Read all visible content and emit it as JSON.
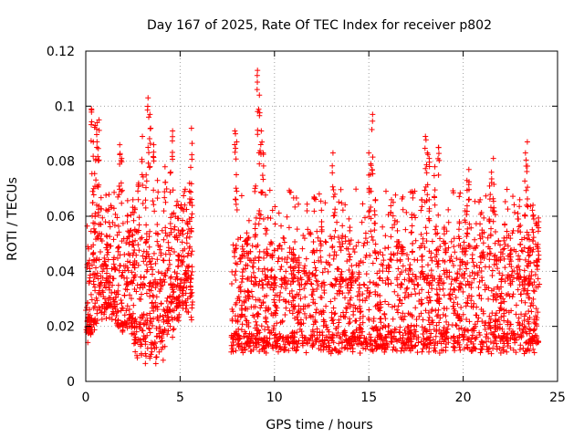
{
  "chart_data": {
    "type": "scatter",
    "title": "Day 167 of 2025, Rate Of TEC Index for receiver p802",
    "xlabel": "GPS time / hours",
    "ylabel": "ROTI / TECUs",
    "xlim": [
      0,
      25
    ],
    "ylim": [
      0,
      0.12
    ],
    "xticks": [
      0,
      5,
      10,
      15,
      20,
      25
    ],
    "xtick_labels": [
      "0",
      "5",
      "10",
      "15",
      "20",
      "25"
    ],
    "yticks": [
      0,
      0.02,
      0.04,
      0.06,
      0.08,
      0.1,
      0.12
    ],
    "ytick_labels": [
      "0",
      "0.02",
      "0.04",
      "0.06",
      "0.08",
      "0.1",
      "0.12"
    ],
    "grid": true,
    "marker": "+",
    "color": "#ff0000",
    "data_gap_hours": [
      5.7,
      7.7
    ],
    "series": [
      {
        "points": [
          [
            0.3,
            0.099
          ],
          [
            0.5,
            0.093
          ],
          [
            0.6,
            0.094
          ],
          [
            0.7,
            0.095
          ],
          [
            0.4,
            0.087
          ],
          [
            0.5,
            0.061
          ],
          [
            0.2,
            0.044
          ],
          [
            0.8,
            0.057
          ],
          [
            1.1,
            0.053
          ],
          [
            1.5,
            0.045
          ],
          [
            1.7,
            0.067
          ],
          [
            1.8,
            0.086
          ],
          [
            1.9,
            0.081
          ],
          [
            2.2,
            0.058
          ],
          [
            2.5,
            0.066
          ],
          [
            2.8,
            0.072
          ],
          [
            3.0,
            0.089
          ],
          [
            3.3,
            0.103
          ],
          [
            3.4,
            0.097
          ],
          [
            3.2,
            0.075
          ],
          [
            3.6,
            0.086
          ],
          [
            3.8,
            0.073
          ],
          [
            4.2,
            0.078
          ],
          [
            4.5,
            0.076
          ],
          [
            4.6,
            0.091
          ],
          [
            5.1,
            0.055
          ],
          [
            5.5,
            0.072
          ],
          [
            5.6,
            0.092
          ],
          [
            4.9,
            0.064
          ],
          [
            2.6,
            0.063
          ],
          [
            7.9,
            0.091
          ],
          [
            8.0,
            0.087
          ],
          [
            8.3,
            0.049
          ],
          [
            8.6,
            0.052
          ],
          [
            9.0,
            0.071
          ],
          [
            9.1,
            0.113
          ],
          [
            9.2,
            0.104
          ],
          [
            9.3,
            0.091
          ],
          [
            9.4,
            0.083
          ],
          [
            9.2,
            0.062
          ],
          [
            9.6,
            0.055
          ],
          [
            10.0,
            0.038
          ],
          [
            10.5,
            0.052
          ],
          [
            11.0,
            0.048
          ],
          [
            11.3,
            0.045
          ],
          [
            11.6,
            0.052
          ],
          [
            12.1,
            0.067
          ],
          [
            12.5,
            0.058
          ],
          [
            13.1,
            0.083
          ],
          [
            13.2,
            0.068
          ],
          [
            13.6,
            0.053
          ],
          [
            14.0,
            0.056
          ],
          [
            14.5,
            0.043
          ],
          [
            15.0,
            0.083
          ],
          [
            15.1,
            0.079
          ],
          [
            15.2,
            0.097
          ],
          [
            15.3,
            0.062
          ],
          [
            15.6,
            0.047
          ],
          [
            16.2,
            0.066
          ],
          [
            16.5,
            0.058
          ],
          [
            16.8,
            0.067
          ],
          [
            17.3,
            0.069
          ],
          [
            17.8,
            0.066
          ],
          [
            18.0,
            0.089
          ],
          [
            18.1,
            0.083
          ],
          [
            18.2,
            0.081
          ],
          [
            18.5,
            0.078
          ],
          [
            18.7,
            0.085
          ],
          [
            19.0,
            0.056
          ],
          [
            19.5,
            0.049
          ],
          [
            19.8,
            0.058
          ],
          [
            20.1,
            0.062
          ],
          [
            20.2,
            0.073
          ],
          [
            20.3,
            0.077
          ],
          [
            20.9,
            0.066
          ],
          [
            21.0,
            0.055
          ],
          [
            21.4,
            0.071
          ],
          [
            21.5,
            0.076
          ],
          [
            21.6,
            0.081
          ],
          [
            22.0,
            0.047
          ],
          [
            22.5,
            0.052
          ],
          [
            22.9,
            0.061
          ],
          [
            23.0,
            0.066
          ],
          [
            23.3,
            0.083
          ],
          [
            23.4,
            0.087
          ],
          [
            23.7,
            0.064
          ],
          [
            23.9,
            0.057
          ],
          [
            24.0,
            0.058
          ]
        ]
      }
    ]
  }
}
